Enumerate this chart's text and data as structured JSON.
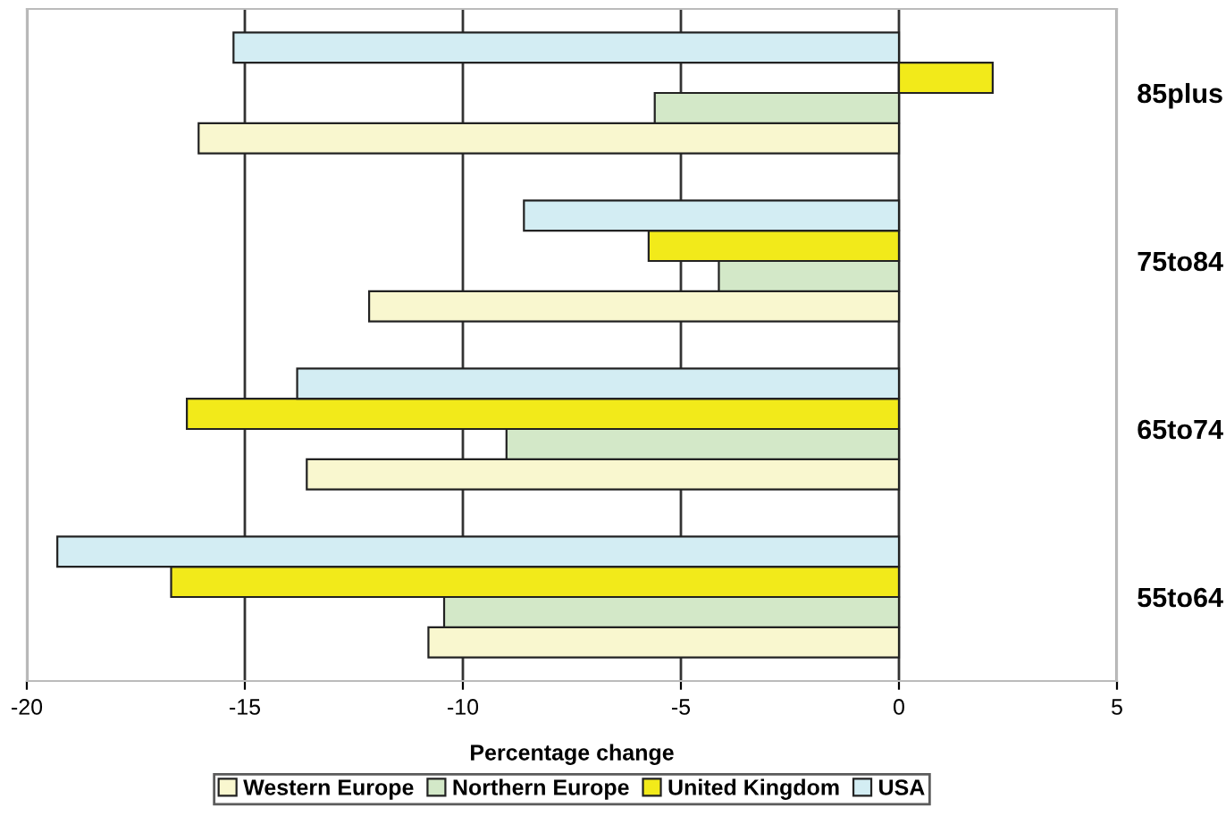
{
  "chart_data": {
    "type": "bar",
    "orientation": "horizontal",
    "xlabel": "Percentage change",
    "categories": [
      "85plus",
      "75to84",
      "65to74",
      "55to64"
    ],
    "series": [
      {
        "name": "Western Europe",
        "color": "#f9f7cf",
        "values": [
          -16.06,
          -12.15,
          -13.58,
          -10.79
        ]
      },
      {
        "name": "Northern Europe",
        "color": "#d3e8c8",
        "values": [
          -5.6,
          -4.13,
          -9.0,
          -10.43
        ]
      },
      {
        "name": "United Kingdom",
        "color": "#f2ea1a",
        "values": [
          2.15,
          -5.74,
          -16.33,
          -16.69
        ]
      },
      {
        "name": "USA",
        "color": "#d3edf3",
        "values": [
          -15.26,
          -8.6,
          -13.8,
          -19.3
        ]
      }
    ],
    "xlim": [
      -20,
      5
    ],
    "xticks": [
      -20,
      -15,
      -10,
      -5,
      0,
      5
    ],
    "grid": "x",
    "legend": "bottom"
  }
}
